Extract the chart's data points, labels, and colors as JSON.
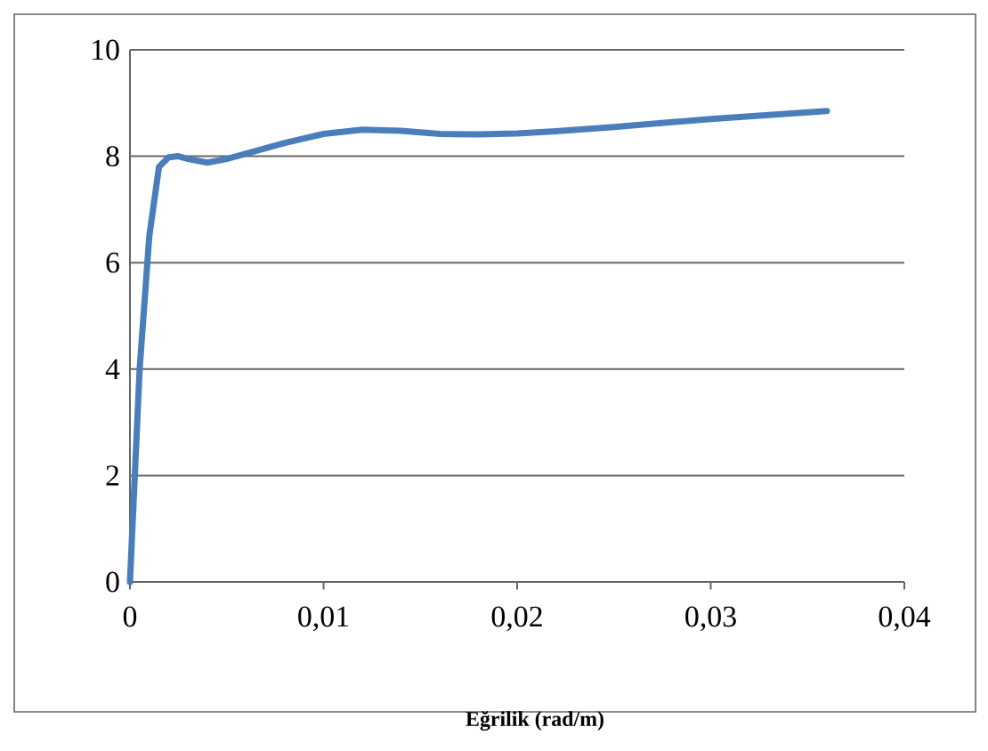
{
  "chart_data": {
    "type": "line",
    "xlabel": "Eğrilik (rad/m)",
    "x": [
      0,
      0.0005,
      0.001,
      0.0015,
      0.002,
      0.0025,
      0.003,
      0.004,
      0.005,
      0.006,
      0.008,
      0.01,
      0.012,
      0.014,
      0.016,
      0.018,
      0.02,
      0.022,
      0.025,
      0.03,
      0.036
    ],
    "series": [
      {
        "color": "#4a7ebb",
        "values": [
          0,
          4,
          6.5,
          7.8,
          7.98,
          8.0,
          7.95,
          7.88,
          7.95,
          8.05,
          8.25,
          8.42,
          8.5,
          8.48,
          8.42,
          8.41,
          8.43,
          8.47,
          8.55,
          8.7,
          8.85
        ]
      }
    ],
    "xlim": [
      0,
      0.04
    ],
    "ylim": [
      0,
      10
    ],
    "xticks": [
      {
        "value": 0,
        "label": "0"
      },
      {
        "value": 0.01,
        "label": "0,01"
      },
      {
        "value": 0.02,
        "label": "0,02"
      },
      {
        "value": 0.03,
        "label": "0,03"
      },
      {
        "value": 0.04,
        "label": "0,04"
      }
    ],
    "yticks": [
      0,
      2,
      4,
      6,
      8,
      10
    ],
    "grid": "y",
    "marker": "none",
    "line_style": "solid"
  }
}
